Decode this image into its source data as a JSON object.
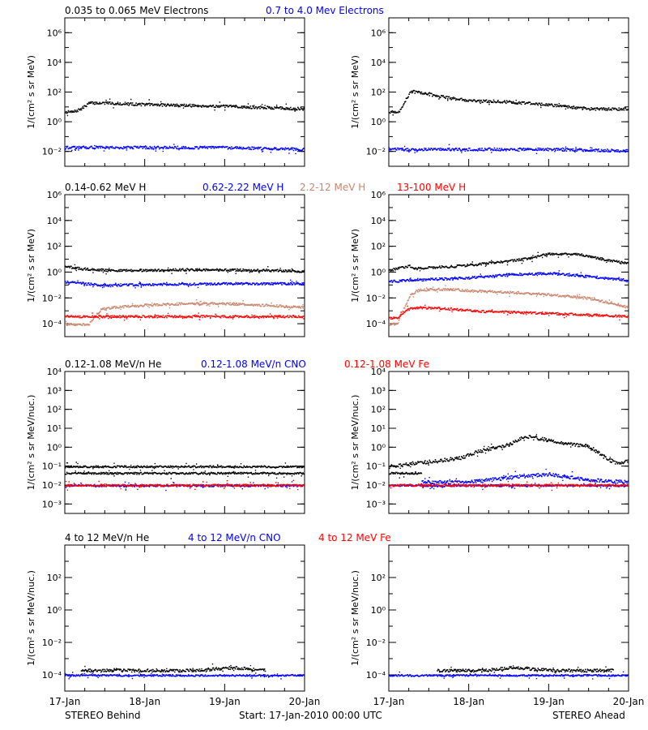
{
  "colors": {
    "black": "#000000",
    "blue": "#0000ff",
    "tan": "#c8866e",
    "red": "#ff0000",
    "frame": "#000000"
  },
  "footer": {
    "left": "STEREO Behind",
    "center": "Start: 17-Jan-2010 00:00 UTC",
    "right": "STEREO Ahead"
  },
  "x_ticks": [
    "17-Jan",
    "18-Jan",
    "19-Jan",
    "20-Jan"
  ],
  "chart_data": [
    {
      "type": "scatter",
      "row": 0,
      "legend": [
        {
          "text": "0.035 to 0.065 MeV Electrons",
          "color": "#000000"
        },
        {
          "text": "0.7 to 4.0 Mev Electrons",
          "color": "#0000ff"
        }
      ],
      "ylabel": "1/(cm² s sr MeV)",
      "yscale": "log",
      "ylim_exp": [
        -3,
        7
      ],
      "yticks": [
        {
          "label": "10⁶",
          "exp": 6
        },
        {
          "label": "10⁴",
          "exp": 4
        },
        {
          "label": "10²",
          "exp": 2
        },
        {
          "label": "10⁰",
          "exp": 0
        },
        {
          "label": "10⁻²",
          "exp": -2
        }
      ],
      "xlim_days": [
        0,
        3
      ],
      "panels": [
        {
          "side": "STEREO Behind",
          "series": [
            {
              "color": "#000000",
              "x": [
                0,
                0.1,
                0.2,
                0.3,
                0.5,
                0.8,
                1.2,
                2.0,
                3.0
              ],
              "y": [
                5,
                5,
                8,
                20,
                20,
                17,
                15,
                12,
                8
              ]
            },
            {
              "color": "#0000ff",
              "x": [
                0,
                1,
                2,
                3
              ],
              "y": [
                0.02,
                0.02,
                0.02,
                0.015
              ]
            }
          ]
        },
        {
          "side": "STEREO Ahead",
          "series": [
            {
              "color": "#000000",
              "x": [
                0,
                0.05,
                0.1,
                0.13,
                0.2,
                0.27,
                0.4,
                0.6,
                0.8,
                1.0,
                1.4,
                2.0,
                2.5,
                3.0
              ],
              "y": [
                5,
                5,
                4,
                6,
                30,
                120,
                100,
                60,
                40,
                30,
                25,
                15,
                8,
                8
              ]
            },
            {
              "color": "#0000ff",
              "x": [
                0,
                1,
                2,
                3
              ],
              "y": [
                0.015,
                0.015,
                0.015,
                0.012
              ]
            }
          ]
        }
      ]
    },
    {
      "type": "scatter",
      "row": 1,
      "legend": [
        {
          "text": "0.14-0.62 MeV H",
          "color": "#000000"
        },
        {
          "text": "0.62-2.22 MeV H",
          "color": "#0000ff"
        },
        {
          "text": "2.2-12 MeV H",
          "color": "#c8866e"
        },
        {
          "text": "13-100 MeV H",
          "color": "#ff0000"
        }
      ],
      "ylabel": "1/(cm² s sr MeV)",
      "yscale": "log",
      "ylim_exp": [
        -5,
        6
      ],
      "yticks": [
        {
          "label": "10⁶",
          "exp": 6
        },
        {
          "label": "10⁴",
          "exp": 4
        },
        {
          "label": "10²",
          "exp": 2
        },
        {
          "label": "10⁰",
          "exp": 0
        },
        {
          "label": "10⁻²",
          "exp": -2
        },
        {
          "label": "10⁻⁴",
          "exp": -4
        }
      ],
      "xlim_days": [
        0,
        3
      ],
      "panels": [
        {
          "side": "STEREO Behind",
          "series": [
            {
              "color": "#000000",
              "x": [
                0,
                0.2,
                0.5,
                1.0,
                1.5,
                2.0,
                2.5,
                3.0
              ],
              "y": [
                3,
                2,
                1.5,
                1.5,
                1.7,
                1.6,
                1.5,
                1.3
              ]
            },
            {
              "color": "#0000ff",
              "x": [
                0,
                0.2,
                0.5,
                1.0,
                2.0,
                3.0
              ],
              "y": [
                0.2,
                0.15,
                0.1,
                0.12,
                0.14,
                0.14
              ]
            },
            {
              "color": "#c8866e",
              "x": [
                0,
                0.3,
                0.35,
                0.45,
                0.6,
                1.0,
                1.5,
                2.0,
                2.5,
                3.0
              ],
              "y": [
                0.0001,
                0.0001,
                0.0003,
                0.0015,
                0.002,
                0.003,
                0.004,
                0.004,
                0.003,
                0.002
              ]
            },
            {
              "color": "#ff0000",
              "x": [
                0,
                1,
                2,
                3
              ],
              "y": [
                0.0004,
                0.0004,
                0.0004,
                0.0004
              ]
            }
          ]
        },
        {
          "side": "STEREO Ahead",
          "series": [
            {
              "color": "#000000",
              "x": [
                0,
                0.1,
                0.25,
                0.3,
                0.5,
                0.8,
                1.2,
                1.5,
                1.8,
                2.0,
                2.4,
                2.7,
                3.0
              ],
              "y": [
                1.5,
                2,
                3.5,
                2,
                2.5,
                3,
                5,
                8,
                15,
                30,
                25,
                10,
                5
              ]
            },
            {
              "color": "#0000ff",
              "x": [
                0,
                0.2,
                0.5,
                1.0,
                1.5,
                1.8,
                2.0,
                2.5,
                3.0
              ],
              "y": [
                0.2,
                0.25,
                0.3,
                0.4,
                0.7,
                0.8,
                0.9,
                0.5,
                0.25
              ]
            },
            {
              "color": "#c8866e",
              "x": [
                0,
                0.1,
                0.13,
                0.2,
                0.27,
                0.35,
                0.5,
                0.8,
                1.0,
                1.5,
                2.0,
                2.5,
                2.8,
                3.0
              ],
              "y": [
                0.0001,
                0.0001,
                0.0003,
                0.003,
                0.02,
                0.04,
                0.05,
                0.05,
                0.04,
                0.03,
                0.02,
                0.01,
                0.004,
                0.002
              ]
            },
            {
              "color": "#ff0000",
              "x": [
                0,
                0.1,
                0.15,
                0.25,
                0.4,
                0.8,
                1.2,
                2.0,
                3.0
              ],
              "y": [
                0.0003,
                0.0003,
                0.0006,
                0.0015,
                0.002,
                0.0015,
                0.001,
                0.0007,
                0.0004
              ]
            }
          ]
        }
      ]
    },
    {
      "type": "scatter",
      "row": 2,
      "legend": [
        {
          "text": "0.12-1.08 MeV/n He",
          "color": "#000000"
        },
        {
          "text": "0.12-1.08 MeV/n CNO",
          "color": "#0000ff"
        },
        {
          "text": "0.12-1.08 MeV Fe",
          "color": "#ff0000"
        }
      ],
      "ylabel": "1/(cm² s sr MeV/nuc.)",
      "yscale": "log",
      "ylim_exp": [
        -3.5,
        4
      ],
      "yticks": [
        {
          "label": "10⁴",
          "exp": 4
        },
        {
          "label": "10³",
          "exp": 3
        },
        {
          "label": "10²",
          "exp": 2
        },
        {
          "label": "10¹",
          "exp": 1
        },
        {
          "label": "10⁰",
          "exp": 0
        },
        {
          "label": "10⁻¹",
          "exp": -1
        },
        {
          "label": "10⁻²",
          "exp": -2
        },
        {
          "label": "10⁻³",
          "exp": -3
        }
      ],
      "xlim_days": [
        0,
        3
      ],
      "panels": [
        {
          "side": "STEREO Behind",
          "series": [
            {
              "color": "#000000",
              "x": [
                0,
                3
              ],
              "y": [
                0.045,
                0.045
              ]
            },
            {
              "color": "#000000",
              "x": [
                0,
                3
              ],
              "y": [
                0.1,
                0.1
              ]
            },
            {
              "color": "#0000ff",
              "x": [
                0,
                3
              ],
              "y": [
                0.01,
                0.01
              ]
            },
            {
              "color": "#ff0000",
              "x": [
                0,
                3
              ],
              "y": [
                0.0105,
                0.0105
              ]
            }
          ]
        },
        {
          "side": "STEREO Ahead",
          "series": [
            {
              "color": "#000000",
              "x": [
                0,
                0.3,
                0.6,
                0.9,
                1.1,
                1.3,
                1.5,
                1.7,
                1.9,
                2.1,
                2.3,
                2.5,
                2.7,
                2.85,
                3.0
              ],
              "y": [
                0.1,
                0.15,
                0.2,
                0.3,
                0.6,
                1.0,
                1.5,
                4,
                3,
                2,
                1.5,
                1.2,
                0.3,
                0.15,
                0.2
              ]
            },
            {
              "color": "#000000",
              "x": [
                0,
                0.4
              ],
              "y": [
                0.045,
                0.045
              ]
            },
            {
              "color": "#0000ff",
              "x": [
                0.4,
                1.0,
                1.6,
                2.0,
                2.5,
                3.0
              ],
              "y": [
                0.015,
                0.015,
                0.03,
                0.04,
                0.02,
                0.015
              ]
            },
            {
              "color": "#0000ff",
              "x": [
                0,
                3
              ],
              "y": [
                0.01,
                0.01
              ]
            },
            {
              "color": "#ff0000",
              "x": [
                0,
                3
              ],
              "y": [
                0.0105,
                0.0105
              ]
            }
          ]
        }
      ]
    },
    {
      "type": "scatter",
      "row": 3,
      "legend": [
        {
          "text": "4 to 12 MeV/n He",
          "color": "#000000"
        },
        {
          "text": "4 to 12 MeV/n CNO",
          "color": "#0000ff"
        },
        {
          "text": "4 to 12 MeV Fe",
          "color": "#ff0000"
        }
      ],
      "ylabel": "1/(cm² s sr MeV/nuc.)",
      "yscale": "log",
      "ylim_exp": [
        -5,
        4
      ],
      "yticks": [
        {
          "label": "10²",
          "exp": 2
        },
        {
          "label": "10⁰",
          "exp": 0
        },
        {
          "label": "10⁻²",
          "exp": -2
        },
        {
          "label": "10⁻⁴",
          "exp": -4
        }
      ],
      "xlim_days": [
        0,
        3
      ],
      "panels": [
        {
          "side": "STEREO Behind",
          "series": [
            {
              "color": "#0000ff",
              "x": [
                0,
                3
              ],
              "y": [
                0.0001,
                0.0001
              ]
            },
            {
              "color": "#000000",
              "x": [
                0.2,
                0.5,
                0.9,
                1.3,
                1.6,
                2.1,
                2.5
              ],
              "y": [
                0.0002,
                0.0002,
                0.0002,
                0.0002,
                0.0002,
                0.0003,
                0.0002
              ]
            }
          ]
        },
        {
          "side": "STEREO Ahead",
          "series": [
            {
              "color": "#0000ff",
              "x": [
                0,
                3
              ],
              "y": [
                0.0001,
                0.0001
              ]
            },
            {
              "color": "#000000",
              "x": [
                0.6,
                0.9,
                1.2,
                1.5,
                2.1,
                2.4,
                2.8
              ],
              "y": [
                0.0002,
                0.0002,
                0.0002,
                0.0003,
                0.0002,
                0.0002,
                0.0002
              ]
            }
          ]
        }
      ]
    }
  ]
}
